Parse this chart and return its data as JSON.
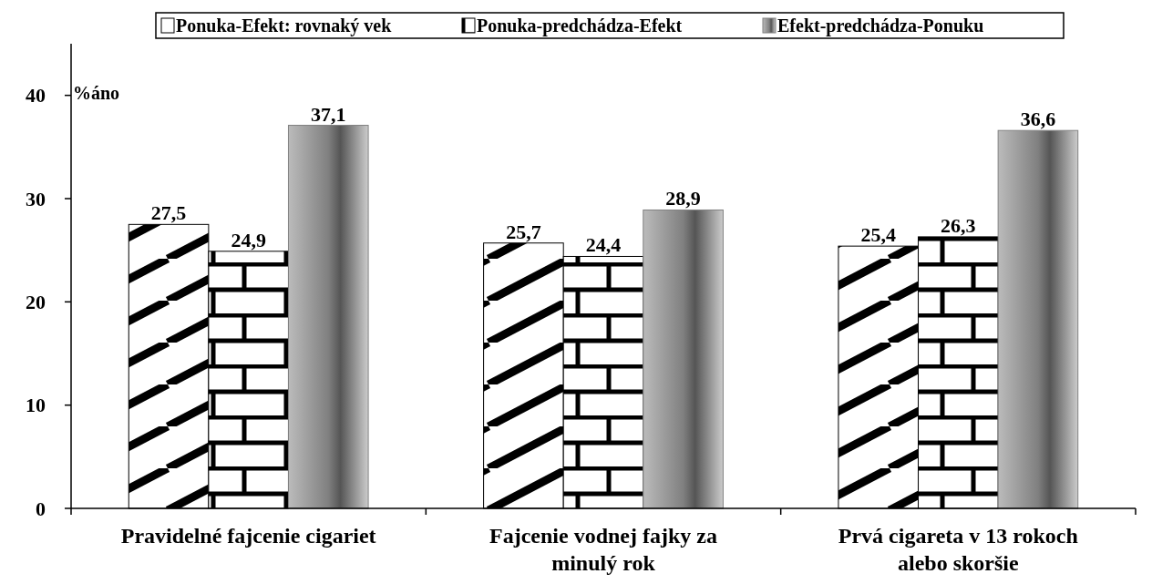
{
  "chart_data": {
    "type": "bar",
    "ylabel": "%áno",
    "categories": [
      "Pravidelné fajcenie cigariet",
      "Fajcenie vodnej fajky za minulý rok",
      "Prvá cigareta v 13 rokoch alebo skoršie"
    ],
    "series": [
      {
        "name": "Ponuka-Efekt: rovnaký vek",
        "color": "#000000",
        "values": [
          27.5,
          25.7,
          25.4
        ],
        "value_labels": [
          "27,5",
          "25,7",
          "25,4"
        ]
      },
      {
        "name": "Ponuka-predchádza-Efekt",
        "color": "#000000",
        "values": [
          24.9,
          24.4,
          26.3
        ],
        "value_labels": [
          "24,9",
          "24,4",
          "26,3"
        ]
      },
      {
        "name": "Efekt-predchádza-Ponuku",
        "color": "#808080",
        "values": [
          37.1,
          28.9,
          36.6
        ],
        "value_labels": [
          "37,1",
          "28,9",
          "36,6"
        ]
      }
    ],
    "ylim": [
      0,
      45
    ],
    "yticks": [
      0,
      10,
      20,
      30,
      40
    ],
    "legend": "top"
  }
}
